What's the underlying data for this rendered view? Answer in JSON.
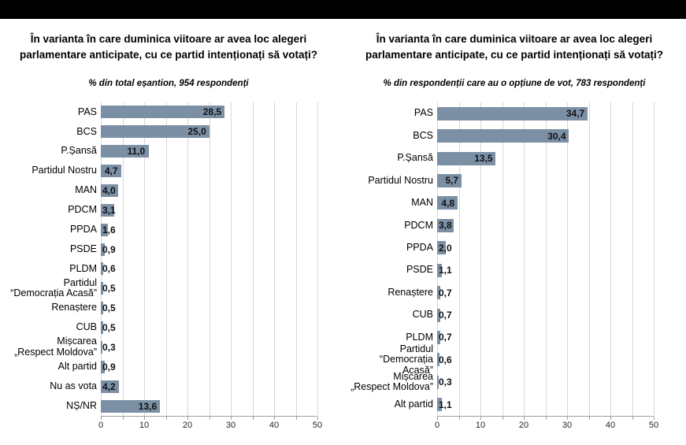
{
  "page": {
    "background_color": "#ffffff",
    "top_banner_color": "#000000"
  },
  "chart_data": [
    {
      "type": "bar",
      "orientation": "horizontal",
      "title_lines": [
        "În varianta în care duminica viitoare ar avea loc alegeri",
        "parlamentare anticipate, cu ce partid intenționați să votați?"
      ],
      "subtitle": "% din total eșantion, 954 respondenți",
      "categories": [
        "PAS",
        "BCS",
        "P.Șansă",
        "Partidul Nostru",
        "MAN",
        "PDCM",
        "PPDA",
        "PSDE",
        "PLDM",
        "Partidul\n“Democrația Acasă”",
        "Renaștere",
        "CUB",
        "Mișcarea\n„Respect Moldova”",
        "Alt partid",
        "Nu as vota",
        "NȘ/NR"
      ],
      "values": [
        28.5,
        25.0,
        11.0,
        4.7,
        4.0,
        3.1,
        1.6,
        0.9,
        0.6,
        0.5,
        0.5,
        0.5,
        0.3,
        0.9,
        4.2,
        13.6
      ],
      "value_labels": [
        "28,5",
        "25,0",
        "11,0",
        "4,7",
        "4,0",
        "3,1",
        "1,6",
        "0,9",
        "0,6",
        "0,5",
        "0,5",
        "0,5",
        "0,3",
        "0,9",
        "4,2",
        "13,6"
      ],
      "xlim": [
        0,
        50
      ],
      "grid_step": 5,
      "tick_step": 10,
      "tick_labels": [
        "0",
        "10",
        "20",
        "30",
        "40",
        "50"
      ],
      "bar_color": "#7c90a5",
      "grid": true,
      "legend": false
    },
    {
      "type": "bar",
      "orientation": "horizontal",
      "title_lines": [
        "În varianta în care duminica viitoare ar avea loc alegeri",
        "parlamentare anticipate, cu ce partid intenționați să votați?"
      ],
      "subtitle": "% din respondenții care au o opțiune de vot, 783 respondenți",
      "categories": [
        "PAS",
        "BCS",
        "P.Șansă",
        "Partidul Nostru",
        "MAN",
        "PDCM",
        "PPDA",
        "PSDE",
        "Renaștere",
        "CUB",
        "PLDM",
        "Partidul\n“Democrația Acasă”",
        "Mișcarea\n„Respect Moldova”",
        "Alt partid"
      ],
      "values": [
        34.7,
        30.4,
        13.5,
        5.7,
        4.8,
        3.8,
        2.0,
        1.1,
        0.7,
        0.7,
        0.7,
        0.6,
        0.3,
        1.1
      ],
      "value_labels": [
        "34,7",
        "30,4",
        "13,5",
        "5,7",
        "4,8",
        "3,8",
        "2,0",
        "1,1",
        "0,7",
        "0,7",
        "0,7",
        "0,6",
        "0,3",
        "1,1"
      ],
      "xlim": [
        0,
        50
      ],
      "grid_step": 5,
      "tick_step": 10,
      "tick_labels": [
        "0",
        "10",
        "20",
        "30",
        "40",
        "50"
      ],
      "bar_color": "#7c90a5",
      "grid": true,
      "legend": false
    }
  ]
}
